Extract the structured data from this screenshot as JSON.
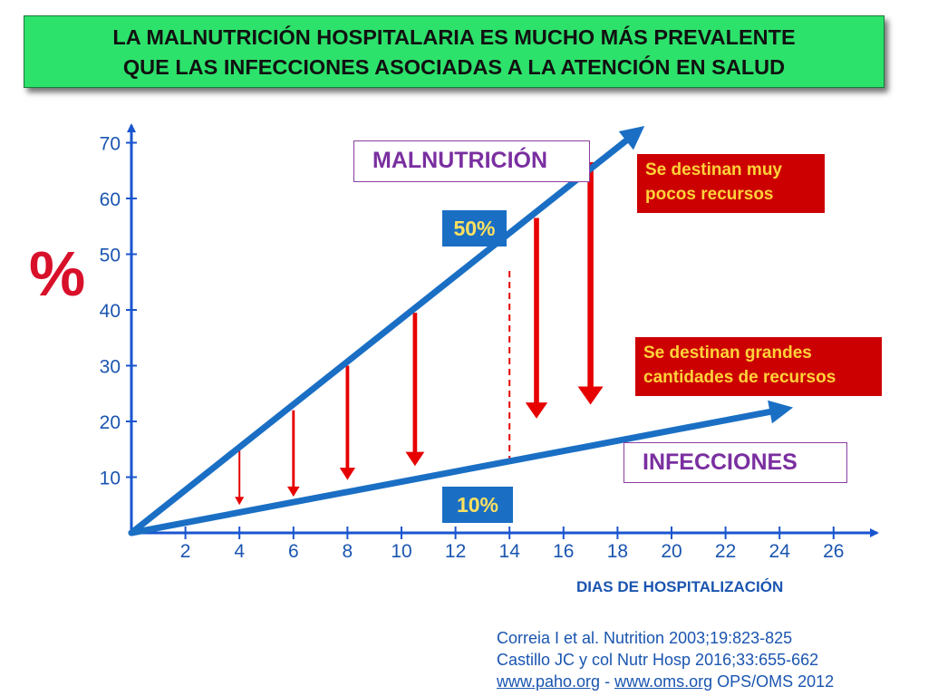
{
  "title": {
    "line1": "LA MALNUTRICIÓN HOSPITALARIA ES MUCHO MÁS PREVALENTE",
    "line2": "QUE LAS INFECCIONES ASOCIADAS A LA ATENCIÓN EN SALUD"
  },
  "colors": {
    "title_bg": "#2de26b",
    "series_line": "#1a6fc4",
    "gap_arrow": "#e60000",
    "label_box_red": "#cc0000",
    "label_text_yellow": "#ffd23a",
    "purple": "#7a2fa0",
    "axis_tick_text": "#1a55b0"
  },
  "labels": {
    "percent_symbol": "%",
    "malnutrition": "MALNUTRICIÓN",
    "infections": "INFECCIONES",
    "few_resources_line1": "Se destinan muy",
    "few_resources_line2": "pocos  recursos",
    "many_resources_line1": "Se destinan grandes",
    "many_resources_line2": "cantidades de recursos",
    "value_50": "50%",
    "value_10": "10%",
    "x_axis_title": "DIAS DE HOSPITALIZACIÓN"
  },
  "references": {
    "line1": "Correia I et al. Nutrition 2003;19:823-825",
    "line2": "Castillo JC y col Nutr Hosp 2016;33:655-662",
    "link1": "www.paho.org",
    "separator": " - ",
    "link2": "www.oms.org",
    "line3_tail": "  OPS/OMS 2012"
  },
  "chart_data": {
    "type": "line",
    "title": "LA MALNUTRICIÓN HOSPITALARIA ES MUCHO MÁS PREVALENTE QUE LAS INFECCIONES ASOCIADAS A LA ATENCIÓN EN SALUD",
    "xlabel": "DIAS DE HOSPITALIZACIÓN",
    "ylabel": "%",
    "xlim": [
      0,
      28
    ],
    "ylim": [
      0,
      70
    ],
    "x_ticks": [
      2,
      4,
      6,
      8,
      10,
      12,
      14,
      16,
      18,
      20,
      22,
      24,
      26
    ],
    "y_ticks": [
      10,
      20,
      30,
      40,
      50,
      60,
      70
    ],
    "grid": false,
    "series": [
      {
        "name": "MALNUTRICIÓN",
        "x": [
          0,
          19
        ],
        "y": [
          0,
          73
        ]
      },
      {
        "name": "INFECCIONES",
        "x": [
          0,
          24.5
        ],
        "y": [
          0,
          22.5
        ]
      }
    ],
    "gap_arrows": [
      {
        "x": 4,
        "y_top": 15,
        "y_bottom": 5
      },
      {
        "x": 6,
        "y_top": 22,
        "y_bottom": 6.5
      },
      {
        "x": 8,
        "y_top": 30,
        "y_bottom": 9.5
      },
      {
        "x": 10.5,
        "y_top": 39.5,
        "y_bottom": 12
      },
      {
        "x": 15,
        "y_top": 56.5,
        "y_bottom": 20.5
      },
      {
        "x": 17,
        "y_top": 66.5,
        "y_bottom": 23
      }
    ],
    "reference_line": {
      "x": 14,
      "from_y": 12,
      "to_y": 47
    },
    "annotations": [
      {
        "text": "50%",
        "x": 14
      },
      {
        "text": "10%",
        "x": 14
      }
    ]
  }
}
